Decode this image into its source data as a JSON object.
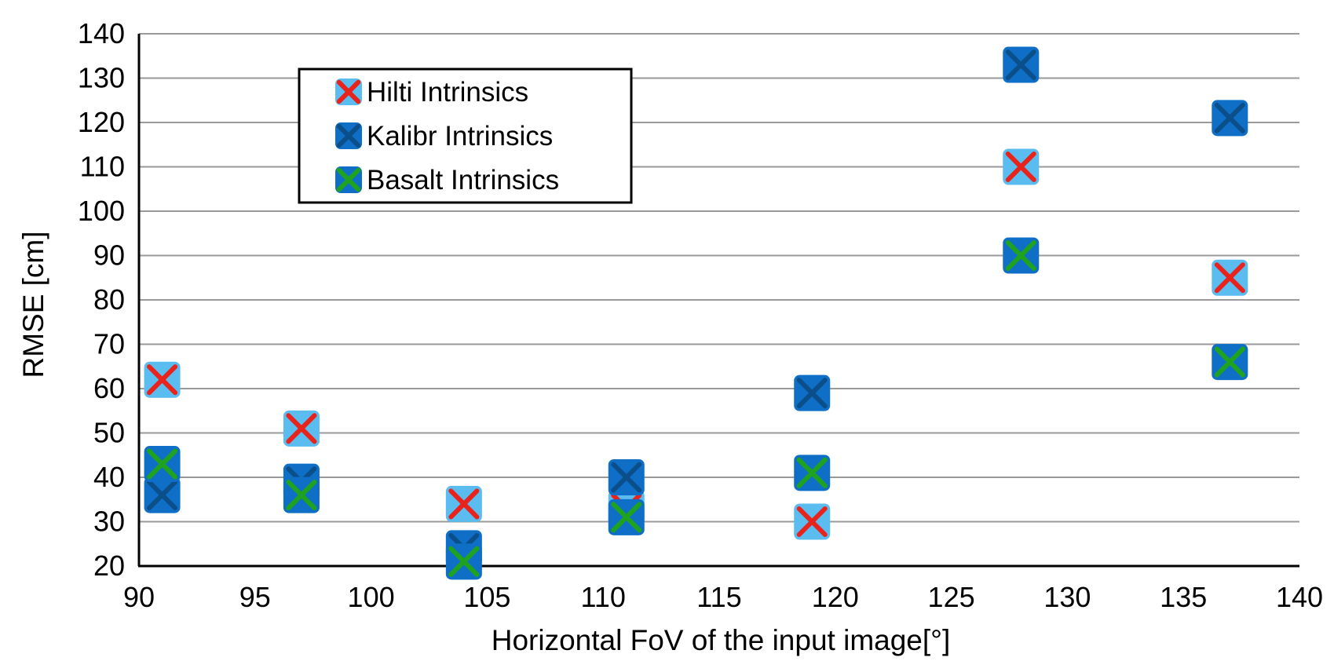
{
  "chart_data": {
    "type": "scatter",
    "title": "",
    "xlabel": "Horizontal FoV of the input image[°]",
    "ylabel": "RMSE [cm]",
    "xlim": [
      90,
      140
    ],
    "ylim": [
      20,
      140
    ],
    "xticks": [
      90,
      95,
      100,
      105,
      110,
      115,
      120,
      125,
      130,
      135,
      140
    ],
    "yticks": [
      20,
      30,
      40,
      50,
      60,
      70,
      80,
      90,
      100,
      110,
      120,
      130,
      140
    ],
    "grid": "horizontal",
    "legend_position": "top-left",
    "series": [
      {
        "name": "Hilti Intrinsics",
        "marker_fill": "#5bbcf0",
        "marker_cross": "#e8231c",
        "points": [
          [
            91,
            62
          ],
          [
            97,
            51
          ],
          [
            104,
            34
          ],
          [
            111,
            33
          ],
          [
            119,
            30
          ],
          [
            128,
            110
          ],
          [
            137,
            85
          ]
        ]
      },
      {
        "name": "Kalibr Intrinsics",
        "marker_fill": "#0f6fc6",
        "marker_cross": "#0b4f8a",
        "points": [
          [
            91,
            36
          ],
          [
            97,
            39
          ],
          [
            104,
            24
          ],
          [
            111,
            40
          ],
          [
            119,
            59
          ],
          [
            128,
            133
          ],
          [
            137,
            121
          ]
        ]
      },
      {
        "name": "Basalt Intrinsics",
        "marker_fill": "#0f6fc6",
        "marker_cross": "#1fa21f",
        "points": [
          [
            91,
            43
          ],
          [
            97,
            36
          ],
          [
            104,
            21
          ],
          [
            111,
            31
          ],
          [
            119,
            41
          ],
          [
            128,
            90
          ],
          [
            137,
            66
          ]
        ]
      }
    ]
  }
}
